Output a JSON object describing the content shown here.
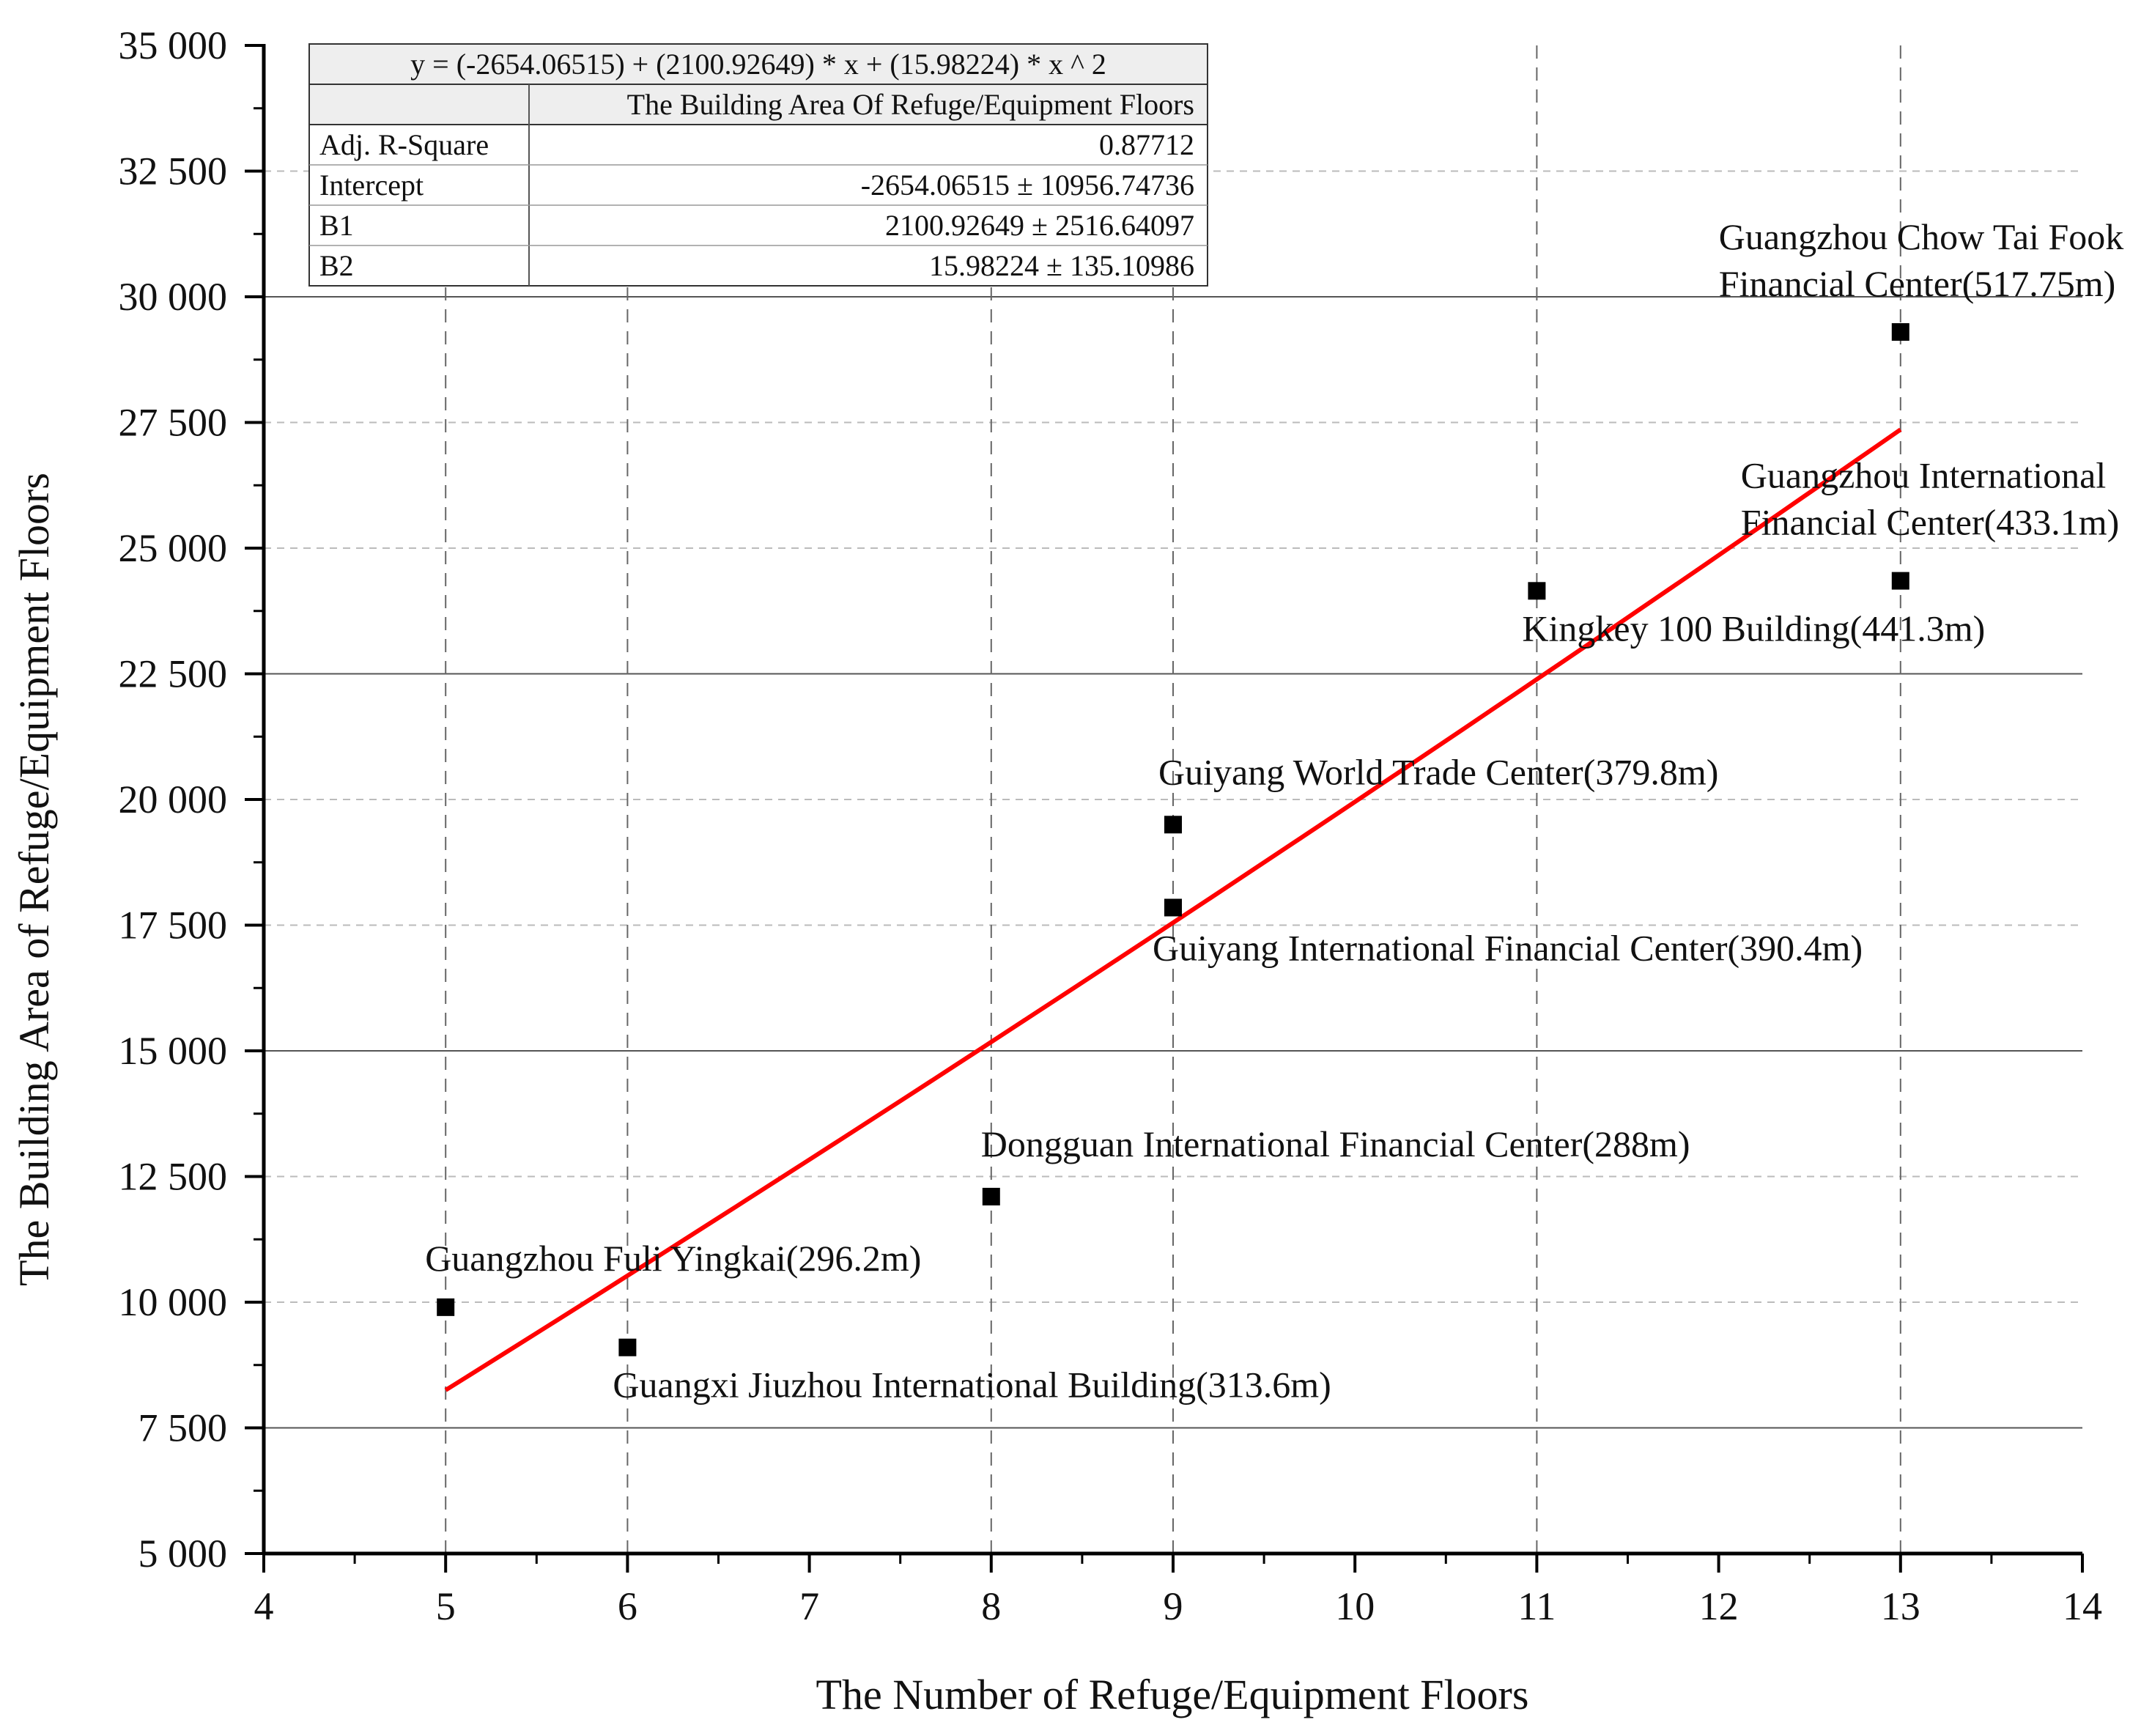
{
  "chart_data": {
    "type": "scatter",
    "xlabel": "The Number of Refuge/Equipment Floors",
    "ylabel": "The Building Area of Refuge/Equipment Floors",
    "xlim": [
      4,
      14
    ],
    "ylim": [
      5000,
      35000
    ],
    "x_ticks": [
      4,
      5,
      6,
      7,
      8,
      9,
      10,
      11,
      12,
      13,
      14
    ],
    "x_tick_labels": [
      "4",
      "5",
      "6",
      "7",
      "8",
      "9",
      "10",
      "11",
      "12",
      "13",
      "14"
    ],
    "y_ticks": [
      5000,
      7500,
      10000,
      12500,
      15000,
      17500,
      20000,
      22500,
      25000,
      27500,
      30000,
      32500,
      35000
    ],
    "y_tick_labels": [
      "5 000",
      "7 500",
      "10 000",
      "12 500",
      "15 000",
      "17 500",
      "20 000",
      "22 500",
      "25 000",
      "27 500",
      "30 000",
      "32 500",
      "35 000"
    ],
    "grid": "dashed minor gridlines with solid gridlines at 7 500, 15 000, 22 500, 30 000",
    "points": [
      {
        "x": 5,
        "y": 9900,
        "label": "Guangzhou Fuli Yingkai(296.2m)"
      },
      {
        "x": 6,
        "y": 9100,
        "label": "Guangxi Jiuzhou International Building(313.6m)"
      },
      {
        "x": 8,
        "y": 12100,
        "label": "Dongguan International Financial Center(288m)"
      },
      {
        "x": 9,
        "y": 19500,
        "label": "Guiyang World Trade Center(379.8m)"
      },
      {
        "x": 9,
        "y": 17850,
        "label": "Guiyang International Financial Center(390.4m)"
      },
      {
        "x": 11,
        "y": 24150,
        "label": "Kingkey 100 Building(441.3m)"
      },
      {
        "x": 13,
        "y": 24350,
        "label": "Guangzhou International Financial Center(433.1m)"
      },
      {
        "x": 13,
        "y": 29300,
        "label": "Guangzhou Chow Tai Fook Financial Center(517.75m)"
      }
    ],
    "fit": {
      "type": "quadratic",
      "intercept": -2654.06515,
      "b1": 2100.92649,
      "b2": 15.98224,
      "x_range": [
        5,
        13
      ],
      "color": "#ff0000"
    },
    "stats_table": {
      "equation": "y =  (-2654.06515) + (2100.92649) * x + (15.98224) * x ^ 2",
      "header": "The Building Area Of Refuge/Equipment Floors",
      "rows": [
        {
          "label": "Adj. R-Square",
          "value": "0.87712"
        },
        {
          "label": "Intercept",
          "value": "-2654.06515 ± 10956.74736"
        },
        {
          "label": "B1",
          "value": "2100.92649 ± 2516.64097"
        },
        {
          "label": "B2",
          "value": "15.98224 ± 135.10986"
        }
      ]
    }
  }
}
